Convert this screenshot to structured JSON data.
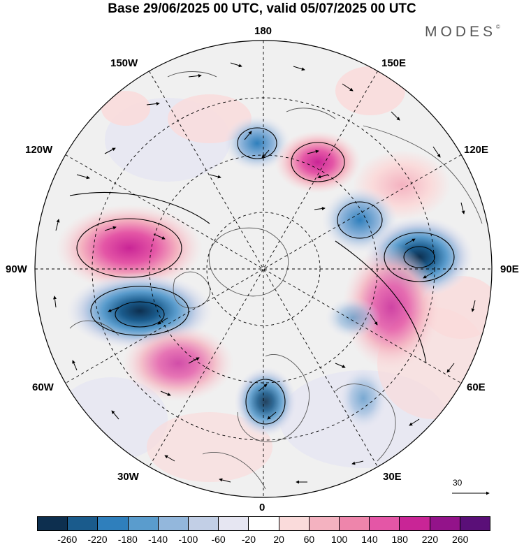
{
  "title": "Base 29/06/2025 00 UTC, valid 05/07/2025 00 UTC",
  "brand": "MODES",
  "brand_mark": "©",
  "meridian_labels": {
    "n180": "180",
    "e150": "150E",
    "e120": "120E",
    "e90": "90E",
    "e60": "60E",
    "e30": "30E",
    "s0": "0",
    "w30": "30W",
    "w60": "60W",
    "w90": "90W",
    "w120": "120W",
    "w150": "150W"
  },
  "reference_vector": {
    "label": "30"
  },
  "colorbar": {
    "colors": [
      "#0d2f4f",
      "#1a5b8c",
      "#2f7fbc",
      "#5a9ccd",
      "#93b7dc",
      "#c2cfe6",
      "#e6e6f2",
      "#ffffff",
      "#fadbdb",
      "#f4b2c0",
      "#ee85ab",
      "#e456a6",
      "#c92596",
      "#93138a",
      "#5a0f78"
    ],
    "ticks": [
      "-260",
      "-220",
      "-180",
      "-140",
      "-100",
      "-60",
      "-20",
      "20",
      "60",
      "100",
      "140",
      "180",
      "220",
      "260"
    ]
  },
  "anomalies": [
    {
      "name": "pacific-low",
      "value": -140
    },
    {
      "name": "siberia-high",
      "value": 180
    },
    {
      "name": "far-east-high",
      "value": 60
    },
    {
      "name": "east-siberia-low",
      "value": -140
    },
    {
      "name": "central-asia-low",
      "value": -180
    },
    {
      "name": "central-asia-high",
      "value": 180
    },
    {
      "name": "canada-high",
      "value": 180
    },
    {
      "name": "hudson-low",
      "value": -220
    },
    {
      "name": "atlantic-high",
      "value": 140
    },
    {
      "name": "europe-low",
      "value": -180
    }
  ]
}
